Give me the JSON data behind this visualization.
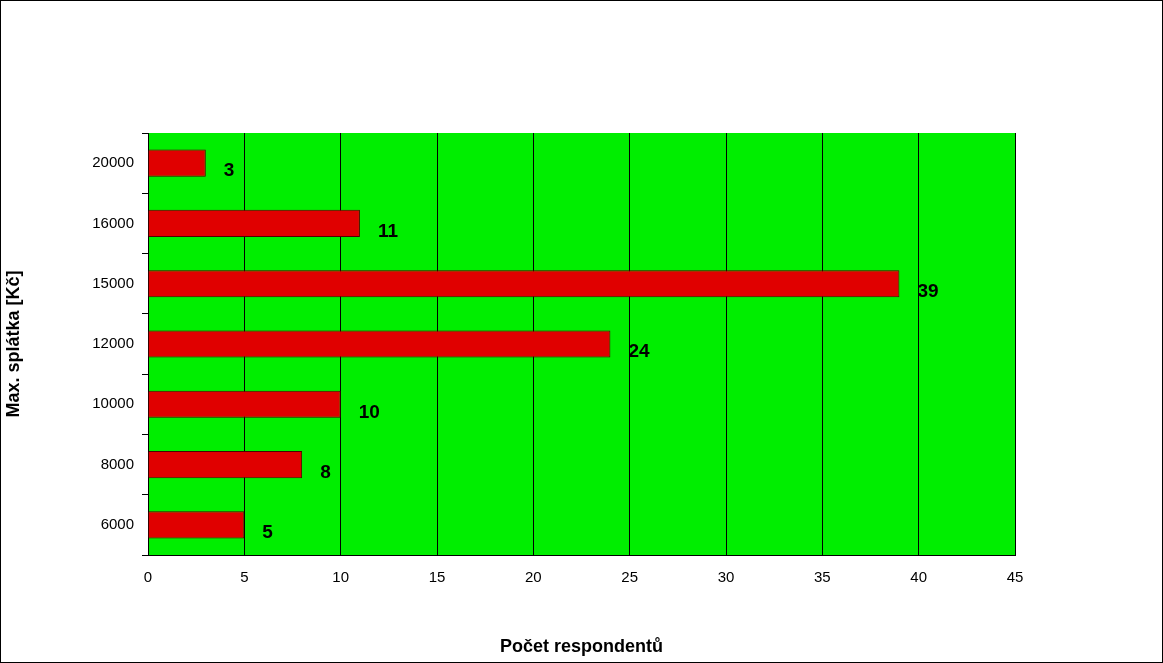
{
  "chart_data": {
    "type": "bar",
    "orientation": "horizontal",
    "xlabel": "Počet respondentů",
    "ylabel": "Max. splátka [Kč]",
    "categories": [
      "20000",
      "16000",
      "15000",
      "12000",
      "10000",
      "8000",
      "6000"
    ],
    "values": [
      3,
      11,
      39,
      24,
      10,
      8,
      5
    ],
    "color": "#e00000",
    "xlim": [
      0,
      45
    ],
    "xticks": [
      0,
      5,
      10,
      15,
      20,
      25,
      30,
      35,
      40,
      45
    ],
    "grid": "x",
    "legend": false,
    "data_labels": true
  }
}
